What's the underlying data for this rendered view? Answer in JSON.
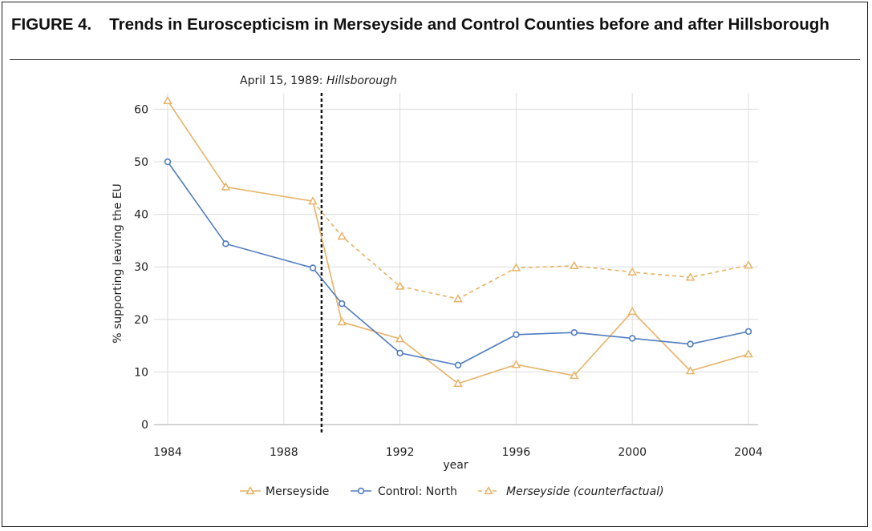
{
  "figure": {
    "label": "FIGURE 4.",
    "title": "Trends in Euroscepticism in Merseyside and Control Counties before and after Hillsborough"
  },
  "chart_data": {
    "type": "line",
    "xlabel": "year",
    "ylabel": "% supporting leaving the EU",
    "xlim": [
      1984,
      2004
    ],
    "ylim": [
      0,
      62
    ],
    "x_ticks": [
      1984,
      1988,
      1992,
      1996,
      2000,
      2004
    ],
    "y_ticks": [
      0,
      10,
      20,
      30,
      40,
      50,
      60
    ],
    "grid": true,
    "legend_position": "bottom",
    "event": {
      "x": 1989.3,
      "label_prefix": "April 15, 1989: ",
      "label_event": "Hillsborough"
    },
    "series": [
      {
        "name": "Merseyside",
        "color": "#E8B267",
        "marker": "triangle",
        "dashed": false,
        "x": [
          1984,
          1986,
          1989,
          1990,
          1992,
          1994,
          1996,
          1998,
          2000,
          2002,
          2004
        ],
        "values": [
          61.6,
          45.2,
          42.5,
          19.5,
          16.3,
          7.8,
          11.4,
          9.3,
          21.5,
          10.2,
          13.4
        ]
      },
      {
        "name": "Control: North",
        "color": "#4F7CC0",
        "marker": "circle",
        "dashed": false,
        "x": [
          1984,
          1986,
          1989,
          1990,
          1992,
          1994,
          1996,
          1998,
          2000,
          2002,
          2004
        ],
        "values": [
          50.0,
          34.4,
          29.8,
          23.0,
          13.6,
          11.3,
          17.1,
          17.5,
          16.4,
          15.3,
          17.7
        ]
      },
      {
        "name": "Merseyside (counterfactual)",
        "color": "#E8B267",
        "marker": "triangle",
        "dashed": true,
        "italic": true,
        "x": [
          1989,
          1990,
          1992,
          1994,
          1996,
          1998,
          2000,
          2002,
          2004
        ],
        "values": [
          42.5,
          35.8,
          26.3,
          23.9,
          29.8,
          30.2,
          29.0,
          28.0,
          30.3
        ]
      }
    ]
  }
}
